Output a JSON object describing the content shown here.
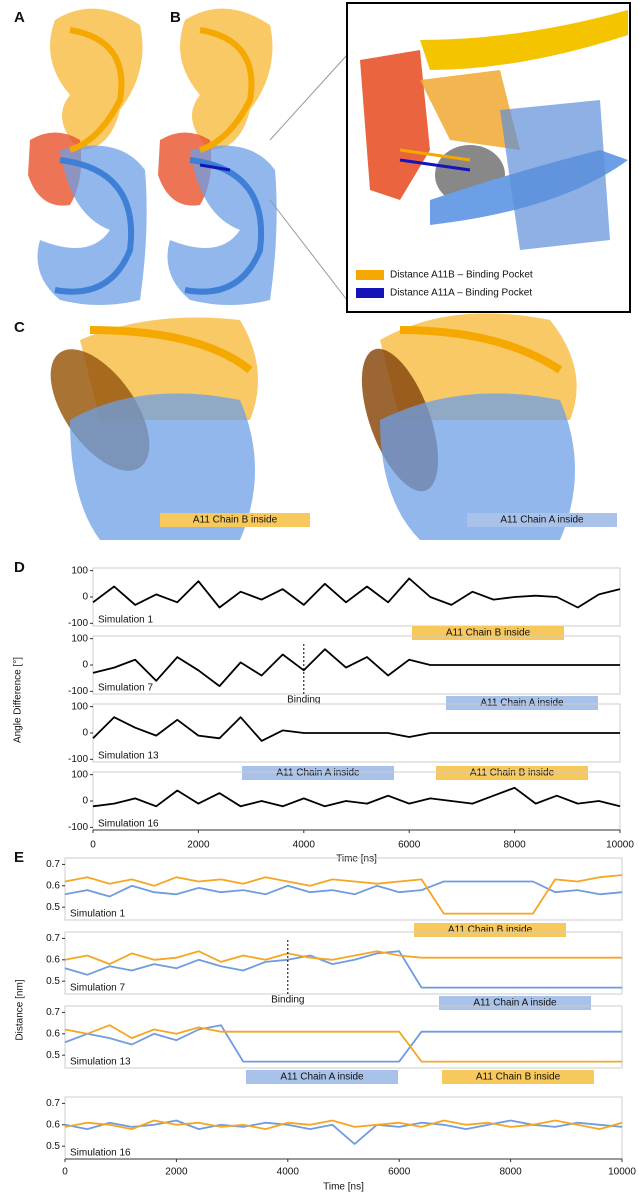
{
  "panels": [
    "A",
    "B",
    "C",
    "D",
    "E"
  ],
  "legend": [
    {
      "text": "Distance A11B – Binding Pocket",
      "color": "#f5a800"
    },
    {
      "text": "Distance A11A – Binding Pocket",
      "color": "#1414b8"
    }
  ],
  "c_labels": [
    {
      "text": "A11 Chain B inside",
      "color": "#f7c85c"
    },
    {
      "text": "A11 Chain A inside",
      "color": "#a9c2ea"
    }
  ],
  "chart_data": [
    {
      "type": "line",
      "note": "Simulation 1",
      "ylim": [
        -110,
        110
      ],
      "yticks": [
        -100,
        0,
        100
      ],
      "xlim": [
        0,
        10000
      ],
      "x": [
        0,
        400,
        800,
        1200,
        1600,
        2000,
        2400,
        2800,
        3200,
        3600,
        4000,
        4400,
        4800,
        5200,
        5600,
        6000,
        6400,
        6800,
        7200,
        7600,
        8000,
        8400,
        8800,
        9200,
        9600,
        10000
      ],
      "series": [
        {
          "color": "#000000",
          "values": [
            -20,
            40,
            -30,
            10,
            -20,
            60,
            -40,
            20,
            -10,
            30,
            -30,
            50,
            -20,
            40,
            -20,
            70,
            0,
            -30,
            20,
            -10,
            0,
            5,
            0,
            -40,
            10,
            30
          ]
        }
      ],
      "annotations": [
        {
          "text": "A11 Chain B inside",
          "color": "#f7c85c"
        }
      ]
    },
    {
      "type": "line",
      "note": "Simulation 7",
      "ylabel": "Angle Difference [°]",
      "ylim": [
        -110,
        110
      ],
      "yticks": [
        -100,
        0,
        100
      ],
      "xlim": [
        0,
        10000
      ],
      "x": [
        0,
        400,
        800,
        1200,
        1600,
        2000,
        2400,
        2800,
        3200,
        3600,
        4000,
        4400,
        4800,
        5200,
        5600,
        6000,
        6400,
        6800,
        7200,
        7600,
        8000,
        8400,
        8800,
        9200,
        9600,
        10000
      ],
      "series": [
        {
          "color": "#000000",
          "values": [
            -30,
            -10,
            20,
            -60,
            30,
            -20,
            -80,
            10,
            -40,
            40,
            -20,
            60,
            -10,
            30,
            -40,
            20,
            0,
            0,
            0,
            0,
            0,
            0,
            0,
            0,
            0,
            0
          ]
        }
      ],
      "event": {
        "text": "Binding",
        "value": 4000
      },
      "annotations": [
        {
          "text": "A11 Chain A inside",
          "color": "#a9c2ea"
        }
      ]
    },
    {
      "type": "line",
      "note": "Simulation 13",
      "ylim": [
        -110,
        110
      ],
      "yticks": [
        -100,
        0,
        100
      ],
      "xlim": [
        0,
        10000
      ],
      "x": [
        0,
        400,
        800,
        1200,
        1600,
        2000,
        2400,
        2800,
        3200,
        3600,
        4000,
        4400,
        4800,
        5200,
        5600,
        6000,
        6400,
        6800,
        7200,
        7600,
        8000,
        8400,
        8800,
        9200,
        9600,
        10000
      ],
      "series": [
        {
          "color": "#000000",
          "values": [
            -20,
            60,
            20,
            -10,
            50,
            -10,
            -20,
            60,
            -30,
            10,
            0,
            0,
            0,
            0,
            0,
            -15,
            0,
            0,
            0,
            0,
            0,
            0,
            0,
            0,
            0,
            0
          ]
        }
      ],
      "annotations": [
        {
          "text": "A11 Chain A inside",
          "color": "#a9c2ea"
        },
        {
          "text": "A11 Chain B inside",
          "color": "#f7c85c"
        }
      ]
    },
    {
      "type": "line",
      "note": "Simulation 16",
      "xlabel": "Time [ns]",
      "ylim": [
        -110,
        110
      ],
      "yticks": [
        -100,
        0,
        100
      ],
      "xlim": [
        0,
        10000
      ],
      "xticks": [
        0,
        2000,
        4000,
        6000,
        8000,
        10000
      ],
      "x": [
        0,
        400,
        800,
        1200,
        1600,
        2000,
        2400,
        2800,
        3200,
        3600,
        4000,
        4400,
        4800,
        5200,
        5600,
        6000,
        6400,
        6800,
        7200,
        7600,
        8000,
        8400,
        8800,
        9200,
        9600,
        10000
      ],
      "series": [
        {
          "color": "#000000",
          "values": [
            -20,
            -10,
            10,
            -20,
            40,
            -10,
            30,
            -20,
            0,
            -20,
            10,
            -20,
            0,
            -10,
            20,
            -10,
            10,
            0,
            -10,
            20,
            50,
            -10,
            20,
            -10,
            0,
            -20
          ]
        }
      ]
    },
    {
      "type": "line",
      "note": "Simulation 1",
      "ylim": [
        0.44,
        0.73
      ],
      "yticks": [
        0.5,
        0.6,
        0.7
      ],
      "xlim": [
        0,
        10000
      ],
      "x": [
        0,
        400,
        800,
        1200,
        1600,
        2000,
        2400,
        2800,
        3200,
        3600,
        4000,
        4400,
        4800,
        5200,
        5600,
        6000,
        6400,
        6800,
        7200,
        7600,
        8000,
        8400,
        8800,
        9200,
        9600,
        10000
      ],
      "series": [
        {
          "color": "#6f9be0",
          "values": [
            0.56,
            0.58,
            0.55,
            0.6,
            0.57,
            0.56,
            0.59,
            0.57,
            0.58,
            0.56,
            0.6,
            0.57,
            0.58,
            0.56,
            0.6,
            0.57,
            0.58,
            0.62,
            0.62,
            0.62,
            0.62,
            0.62,
            0.57,
            0.58,
            0.56,
            0.57
          ]
        },
        {
          "color": "#f5a623",
          "values": [
            0.62,
            0.64,
            0.61,
            0.63,
            0.6,
            0.64,
            0.62,
            0.63,
            0.61,
            0.64,
            0.62,
            0.6,
            0.63,
            0.62,
            0.61,
            0.62,
            0.63,
            0.47,
            0.47,
            0.47,
            0.47,
            0.47,
            0.63,
            0.62,
            0.64,
            0.65
          ]
        }
      ],
      "annotations": [
        {
          "text": "A11 Chain B inside",
          "color": "#f7c85c"
        }
      ]
    },
    {
      "type": "line",
      "note": "Simulation 7",
      "ylabel": "Distance [nm]",
      "ylim": [
        0.44,
        0.73
      ],
      "yticks": [
        0.5,
        0.6,
        0.7
      ],
      "xlim": [
        0,
        10000
      ],
      "x": [
        0,
        400,
        800,
        1200,
        1600,
        2000,
        2400,
        2800,
        3200,
        3600,
        4000,
        4400,
        4800,
        5200,
        5600,
        6000,
        6400,
        6800,
        7200,
        7600,
        8000,
        8400,
        8800,
        9200,
        9600,
        10000
      ],
      "series": [
        {
          "color": "#6f9be0",
          "values": [
            0.56,
            0.53,
            0.57,
            0.55,
            0.58,
            0.56,
            0.6,
            0.57,
            0.55,
            0.59,
            0.6,
            0.62,
            0.58,
            0.6,
            0.63,
            0.64,
            0.47,
            0.47,
            0.47,
            0.47,
            0.47,
            0.47,
            0.47,
            0.47,
            0.47,
            0.47
          ]
        },
        {
          "color": "#f5a623",
          "values": [
            0.6,
            0.62,
            0.58,
            0.63,
            0.6,
            0.61,
            0.64,
            0.59,
            0.62,
            0.6,
            0.63,
            0.61,
            0.6,
            0.62,
            0.64,
            0.62,
            0.61,
            0.61,
            0.61,
            0.61,
            0.61,
            0.61,
            0.61,
            0.61,
            0.61,
            0.61
          ]
        }
      ],
      "event": {
        "text": "Binding",
        "value": 4000
      },
      "annotations": [
        {
          "text": "A11 Chain A inside",
          "color": "#a9c2ea"
        }
      ]
    },
    {
      "type": "line",
      "note": "Simulation 13",
      "ylim": [
        0.44,
        0.73
      ],
      "yticks": [
        0.5,
        0.6,
        0.7
      ],
      "xlim": [
        0,
        10000
      ],
      "x": [
        0,
        400,
        800,
        1200,
        1600,
        2000,
        2400,
        2800,
        3200,
        3600,
        4000,
        4400,
        4800,
        5200,
        5600,
        6000,
        6400,
        6800,
        7200,
        7600,
        8000,
        8400,
        8800,
        9200,
        9600,
        10000
      ],
      "series": [
        {
          "color": "#6f9be0",
          "values": [
            0.56,
            0.6,
            0.58,
            0.55,
            0.6,
            0.57,
            0.62,
            0.64,
            0.47,
            0.47,
            0.47,
            0.47,
            0.47,
            0.47,
            0.47,
            0.47,
            0.61,
            0.61,
            0.61,
            0.61,
            0.61,
            0.61,
            0.61,
            0.61,
            0.61,
            0.61
          ]
        },
        {
          "color": "#f5a623",
          "values": [
            0.62,
            0.6,
            0.64,
            0.58,
            0.62,
            0.6,
            0.63,
            0.61,
            0.61,
            0.61,
            0.61,
            0.61,
            0.61,
            0.61,
            0.61,
            0.61,
            0.47,
            0.47,
            0.47,
            0.47,
            0.47,
            0.47,
            0.47,
            0.47,
            0.47,
            0.47
          ]
        }
      ],
      "annotations": [
        {
          "text": "A11 Chain A inside",
          "color": "#a9c2ea"
        },
        {
          "text": "A11 Chain B inside",
          "color": "#f7c85c"
        }
      ]
    },
    {
      "type": "line",
      "note": "Simulation 16",
      "xlabel": "Time [ns]",
      "ylim": [
        0.44,
        0.73
      ],
      "yticks": [
        0.5,
        0.6,
        0.7
      ],
      "xlim": [
        0,
        10000
      ],
      "xticks": [
        0,
        2000,
        4000,
        6000,
        8000,
        10000
      ],
      "x": [
        0,
        400,
        800,
        1200,
        1600,
        2000,
        2400,
        2800,
        3200,
        3600,
        4000,
        4400,
        4800,
        5200,
        5600,
        6000,
        6400,
        6800,
        7200,
        7600,
        8000,
        8400,
        8800,
        9200,
        9600,
        10000
      ],
      "series": [
        {
          "color": "#6f9be0",
          "values": [
            0.6,
            0.58,
            0.61,
            0.59,
            0.6,
            0.62,
            0.58,
            0.6,
            0.59,
            0.61,
            0.6,
            0.58,
            0.6,
            0.51,
            0.6,
            0.59,
            0.61,
            0.6,
            0.58,
            0.6,
            0.62,
            0.6,
            0.59,
            0.61,
            0.6,
            0.59
          ]
        },
        {
          "color": "#f5a623",
          "values": [
            0.59,
            0.61,
            0.6,
            0.58,
            0.62,
            0.6,
            0.61,
            0.59,
            0.6,
            0.58,
            0.61,
            0.6,
            0.62,
            0.59,
            0.6,
            0.61,
            0.59,
            0.62,
            0.6,
            0.61,
            0.59,
            0.6,
            0.62,
            0.6,
            0.58,
            0.61
          ]
        }
      ]
    }
  ]
}
